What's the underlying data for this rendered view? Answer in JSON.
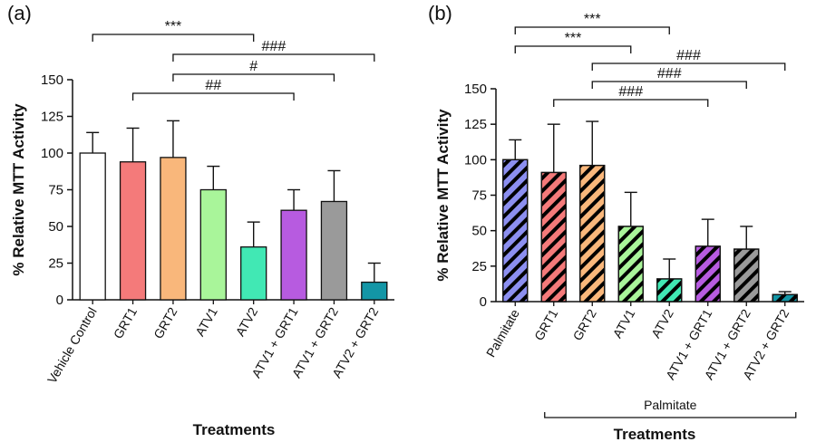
{
  "chart_data": [
    {
      "type": "bar",
      "panel_label": "(a)",
      "ylabel": "% Relative MTT Activity",
      "xlabel": "Treatments",
      "ylim": [
        0,
        150
      ],
      "yticks": [
        "0",
        "25",
        "50",
        "75",
        "100",
        "125",
        "150"
      ],
      "hatched": false,
      "categories": [
        "Vehicle Control",
        "GRT1",
        "GRT2",
        "ATV1",
        "ATV2",
        "ATV1 + GRT1",
        "ATV1 + GRT2",
        "ATV2 + GRT2"
      ],
      "values": [
        100,
        94,
        97,
        75,
        36,
        61,
        67,
        12
      ],
      "errors": [
        14,
        23,
        25,
        16,
        17,
        14,
        21,
        13
      ],
      "colors": [
        "#ffffff",
        "#f47a7a",
        "#f9b77b",
        "#a9f59a",
        "#41e8b4",
        "#b75be0",
        "#9a9a9a",
        "#1396a6"
      ],
      "significance": [
        {
          "from": 0,
          "to": 4,
          "label": "***"
        },
        {
          "from": 2,
          "to": 7,
          "label": "###"
        },
        {
          "from": 2,
          "to": 6,
          "label": "#"
        },
        {
          "from": 1,
          "to": 5,
          "label": "##"
        }
      ]
    },
    {
      "type": "bar",
      "panel_label": "(b)",
      "ylabel": "% Relative MTT Activity",
      "xlabel": "Treatments",
      "group_label": "Palmitate",
      "ylim": [
        0,
        150
      ],
      "yticks": [
        "0",
        "25",
        "50",
        "75",
        "100",
        "125",
        "150"
      ],
      "hatched": true,
      "categories": [
        "Palmitate",
        "GRT1",
        "GRT2",
        "ATV1",
        "ATV2",
        "ATV1 + GRT1",
        "ATV1 + GRT2",
        "ATV2 + GRT2"
      ],
      "values": [
        100,
        91,
        96,
        53,
        16,
        39,
        37,
        5
      ],
      "errors": [
        14,
        34,
        31,
        24,
        14,
        19,
        16,
        2
      ],
      "colors": [
        "#8c8ff0",
        "#f47a7a",
        "#f9b77b",
        "#a9f59a",
        "#41e8b4",
        "#b75be0",
        "#9a9a9a",
        "#1396a6"
      ],
      "significance": [
        {
          "from": 0,
          "to": 4,
          "label": "***"
        },
        {
          "from": 0,
          "to": 3,
          "label": "***"
        },
        {
          "from": 2,
          "to": 7,
          "label": "###"
        },
        {
          "from": 2,
          "to": 6,
          "label": "###"
        },
        {
          "from": 1,
          "to": 5,
          "label": "###"
        }
      ]
    }
  ]
}
